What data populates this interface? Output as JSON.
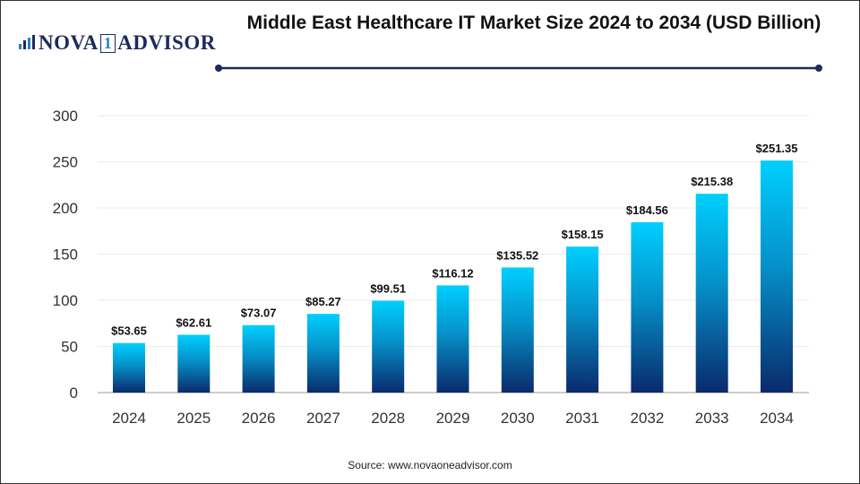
{
  "logo": {
    "prefix": "NOVA",
    "one": "1",
    "suffix": "ADVISOR"
  },
  "title": "Middle East Healthcare IT Market Size 2024 to 2034 (USD Billion)",
  "source": "Source: www.novaoneadvisor.com",
  "colors": {
    "bar_top": "#00cfff",
    "bar_bottom": "#0a2a6b",
    "title_rule": "#1d2a5c"
  },
  "chart_data": {
    "type": "bar",
    "title": "Middle East Healthcare IT Market Size 2024 to 2034 (USD Billion)",
    "categories": [
      "2024",
      "2025",
      "2026",
      "2027",
      "2028",
      "2029",
      "2030",
      "2031",
      "2032",
      "2033",
      "2034"
    ],
    "values": [
      53.65,
      62.61,
      73.07,
      85.27,
      99.51,
      116.12,
      135.52,
      158.15,
      184.56,
      215.38,
      251.35
    ],
    "data_labels": [
      "$53.65",
      "$62.61",
      "$73.07",
      "$85.27",
      "$99.51",
      "$116.12",
      "$135.52",
      "$158.15",
      "$184.56",
      "$215.38",
      "$251.35"
    ],
    "ylim": [
      0,
      300
    ],
    "yticks": [
      0,
      50,
      100,
      150,
      200,
      250,
      300
    ],
    "xlabel": "",
    "ylabel": "",
    "grid": true,
    "legend": "none"
  }
}
